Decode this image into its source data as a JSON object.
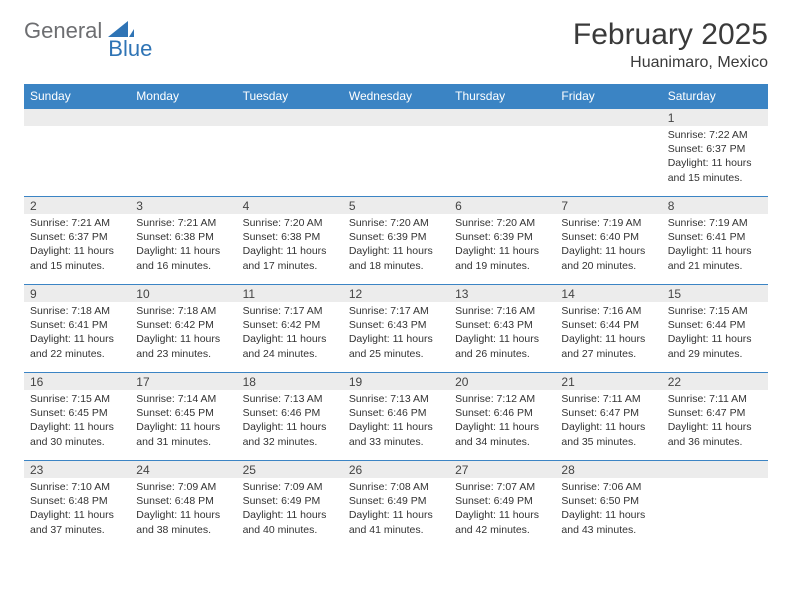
{
  "brand": {
    "part1": "General",
    "part2": "Blue"
  },
  "title": "February 2025",
  "location": "Huanimaro, Mexico",
  "colors": {
    "header_bg": "#3b84c4",
    "header_text": "#ffffff",
    "border": "#3b84c4",
    "daynum_bg": "#ececec",
    "brand_gray": "#6d6e71",
    "brand_blue": "#2f74b5"
  },
  "weekdays": [
    "Sunday",
    "Monday",
    "Tuesday",
    "Wednesday",
    "Thursday",
    "Friday",
    "Saturday"
  ],
  "weeks": [
    [
      {
        "day": "",
        "lines": []
      },
      {
        "day": "",
        "lines": []
      },
      {
        "day": "",
        "lines": []
      },
      {
        "day": "",
        "lines": []
      },
      {
        "day": "",
        "lines": []
      },
      {
        "day": "",
        "lines": []
      },
      {
        "day": "1",
        "lines": [
          "Sunrise: 7:22 AM",
          "Sunset: 6:37 PM",
          "Daylight: 11 hours and 15 minutes."
        ]
      }
    ],
    [
      {
        "day": "2",
        "lines": [
          "Sunrise: 7:21 AM",
          "Sunset: 6:37 PM",
          "Daylight: 11 hours and 15 minutes."
        ]
      },
      {
        "day": "3",
        "lines": [
          "Sunrise: 7:21 AM",
          "Sunset: 6:38 PM",
          "Daylight: 11 hours and 16 minutes."
        ]
      },
      {
        "day": "4",
        "lines": [
          "Sunrise: 7:20 AM",
          "Sunset: 6:38 PM",
          "Daylight: 11 hours and 17 minutes."
        ]
      },
      {
        "day": "5",
        "lines": [
          "Sunrise: 7:20 AM",
          "Sunset: 6:39 PM",
          "Daylight: 11 hours and 18 minutes."
        ]
      },
      {
        "day": "6",
        "lines": [
          "Sunrise: 7:20 AM",
          "Sunset: 6:39 PM",
          "Daylight: 11 hours and 19 minutes."
        ]
      },
      {
        "day": "7",
        "lines": [
          "Sunrise: 7:19 AM",
          "Sunset: 6:40 PM",
          "Daylight: 11 hours and 20 minutes."
        ]
      },
      {
        "day": "8",
        "lines": [
          "Sunrise: 7:19 AM",
          "Sunset: 6:41 PM",
          "Daylight: 11 hours and 21 minutes."
        ]
      }
    ],
    [
      {
        "day": "9",
        "lines": [
          "Sunrise: 7:18 AM",
          "Sunset: 6:41 PM",
          "Daylight: 11 hours and 22 minutes."
        ]
      },
      {
        "day": "10",
        "lines": [
          "Sunrise: 7:18 AM",
          "Sunset: 6:42 PM",
          "Daylight: 11 hours and 23 minutes."
        ]
      },
      {
        "day": "11",
        "lines": [
          "Sunrise: 7:17 AM",
          "Sunset: 6:42 PM",
          "Daylight: 11 hours and 24 minutes."
        ]
      },
      {
        "day": "12",
        "lines": [
          "Sunrise: 7:17 AM",
          "Sunset: 6:43 PM",
          "Daylight: 11 hours and 25 minutes."
        ]
      },
      {
        "day": "13",
        "lines": [
          "Sunrise: 7:16 AM",
          "Sunset: 6:43 PM",
          "Daylight: 11 hours and 26 minutes."
        ]
      },
      {
        "day": "14",
        "lines": [
          "Sunrise: 7:16 AM",
          "Sunset: 6:44 PM",
          "Daylight: 11 hours and 27 minutes."
        ]
      },
      {
        "day": "15",
        "lines": [
          "Sunrise: 7:15 AM",
          "Sunset: 6:44 PM",
          "Daylight: 11 hours and 29 minutes."
        ]
      }
    ],
    [
      {
        "day": "16",
        "lines": [
          "Sunrise: 7:15 AM",
          "Sunset: 6:45 PM",
          "Daylight: 11 hours and 30 minutes."
        ]
      },
      {
        "day": "17",
        "lines": [
          "Sunrise: 7:14 AM",
          "Sunset: 6:45 PM",
          "Daylight: 11 hours and 31 minutes."
        ]
      },
      {
        "day": "18",
        "lines": [
          "Sunrise: 7:13 AM",
          "Sunset: 6:46 PM",
          "Daylight: 11 hours and 32 minutes."
        ]
      },
      {
        "day": "19",
        "lines": [
          "Sunrise: 7:13 AM",
          "Sunset: 6:46 PM",
          "Daylight: 11 hours and 33 minutes."
        ]
      },
      {
        "day": "20",
        "lines": [
          "Sunrise: 7:12 AM",
          "Sunset: 6:46 PM",
          "Daylight: 11 hours and 34 minutes."
        ]
      },
      {
        "day": "21",
        "lines": [
          "Sunrise: 7:11 AM",
          "Sunset: 6:47 PM",
          "Daylight: 11 hours and 35 minutes."
        ]
      },
      {
        "day": "22",
        "lines": [
          "Sunrise: 7:11 AM",
          "Sunset: 6:47 PM",
          "Daylight: 11 hours and 36 minutes."
        ]
      }
    ],
    [
      {
        "day": "23",
        "lines": [
          "Sunrise: 7:10 AM",
          "Sunset: 6:48 PM",
          "Daylight: 11 hours and 37 minutes."
        ]
      },
      {
        "day": "24",
        "lines": [
          "Sunrise: 7:09 AM",
          "Sunset: 6:48 PM",
          "Daylight: 11 hours and 38 minutes."
        ]
      },
      {
        "day": "25",
        "lines": [
          "Sunrise: 7:09 AM",
          "Sunset: 6:49 PM",
          "Daylight: 11 hours and 40 minutes."
        ]
      },
      {
        "day": "26",
        "lines": [
          "Sunrise: 7:08 AM",
          "Sunset: 6:49 PM",
          "Daylight: 11 hours and 41 minutes."
        ]
      },
      {
        "day": "27",
        "lines": [
          "Sunrise: 7:07 AM",
          "Sunset: 6:49 PM",
          "Daylight: 11 hours and 42 minutes."
        ]
      },
      {
        "day": "28",
        "lines": [
          "Sunrise: 7:06 AM",
          "Sunset: 6:50 PM",
          "Daylight: 11 hours and 43 minutes."
        ]
      },
      {
        "day": "",
        "lines": []
      }
    ]
  ]
}
